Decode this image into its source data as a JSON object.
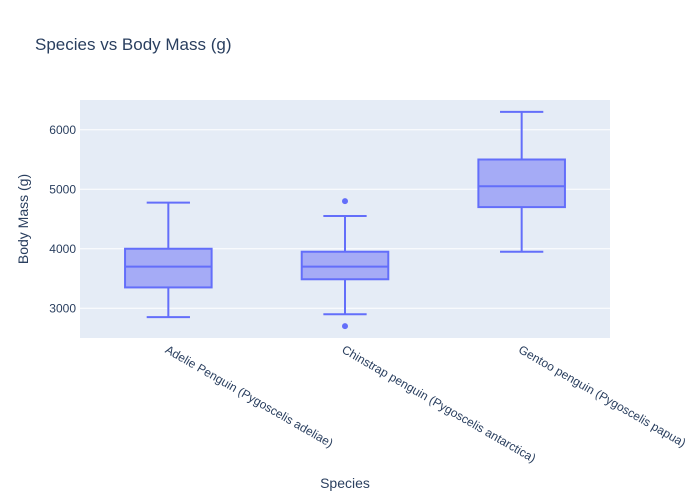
{
  "chart_data": {
    "type": "box",
    "title": "Species vs Body Mass (g)",
    "xlabel": "Species",
    "ylabel": "Body Mass (g)",
    "ylim": [
      2500,
      6500
    ],
    "yticks": [
      3000,
      4000,
      5000,
      6000
    ],
    "grid": true,
    "color": "#636efa",
    "fill": "#a5abf6",
    "background": "#e5ecf6",
    "categories": [
      "Adelie Penguin (Pygoscelis adeliae)",
      "Chinstrap penguin (Pygoscelis antarctica)",
      "Gentoo penguin (Pygoscelis papua)"
    ],
    "boxes": [
      {
        "min": 2850,
        "q1": 3350,
        "median": 3700,
        "q3": 4000,
        "max": 4775,
        "outliers": []
      },
      {
        "min": 2900,
        "q1": 3487,
        "median": 3700,
        "q3": 3950,
        "max": 4550,
        "outliers": [
          4800,
          2700
        ]
      },
      {
        "min": 3950,
        "q1": 4700,
        "median": 5050,
        "q3": 5500,
        "max": 6300,
        "outliers": []
      }
    ]
  }
}
